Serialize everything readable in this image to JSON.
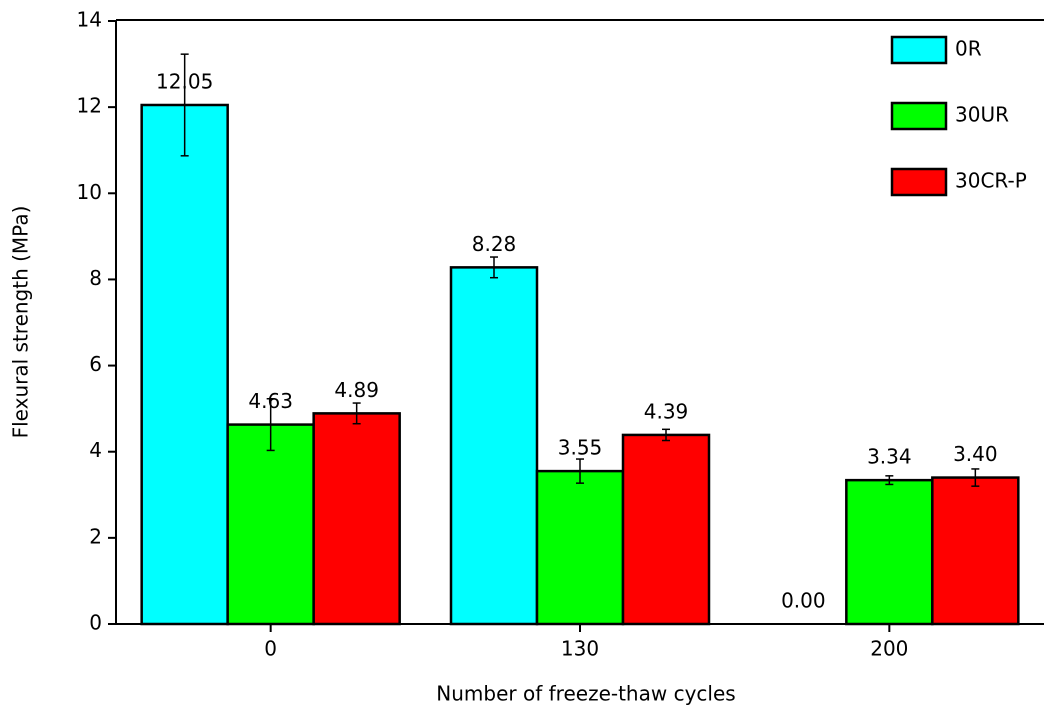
{
  "chart_data": {
    "type": "bar",
    "x_label": "Number of freeze-thaw cycles",
    "y_label": "Flexural strength (MPa)",
    "categories": [
      "0",
      "130",
      "200"
    ],
    "series": [
      {
        "name": "0R",
        "color": "#00ffff",
        "values": [
          12.05,
          8.28,
          0.0
        ],
        "value_labels": [
          "12.05",
          "8.28",
          "0.00"
        ],
        "errors": [
          1.18,
          0.24,
          null
        ]
      },
      {
        "name": "30UR",
        "color": "#00ff00",
        "values": [
          4.63,
          3.55,
          3.34
        ],
        "value_labels": [
          "4.63",
          "3.55",
          "3.34"
        ],
        "errors": [
          0.6,
          0.28,
          0.1
        ]
      },
      {
        "name": "30CR-P",
        "color": "#ff0000",
        "values": [
          4.89,
          4.39,
          3.4
        ],
        "value_labels": [
          "4.89",
          "4.39",
          "3.40"
        ],
        "errors": [
          0.24,
          0.13,
          0.2
        ]
      }
    ],
    "ylim": [
      0,
      14
    ],
    "yticks": [
      0,
      2,
      4,
      6,
      8,
      10,
      12,
      14
    ],
    "legend": "upper right"
  }
}
